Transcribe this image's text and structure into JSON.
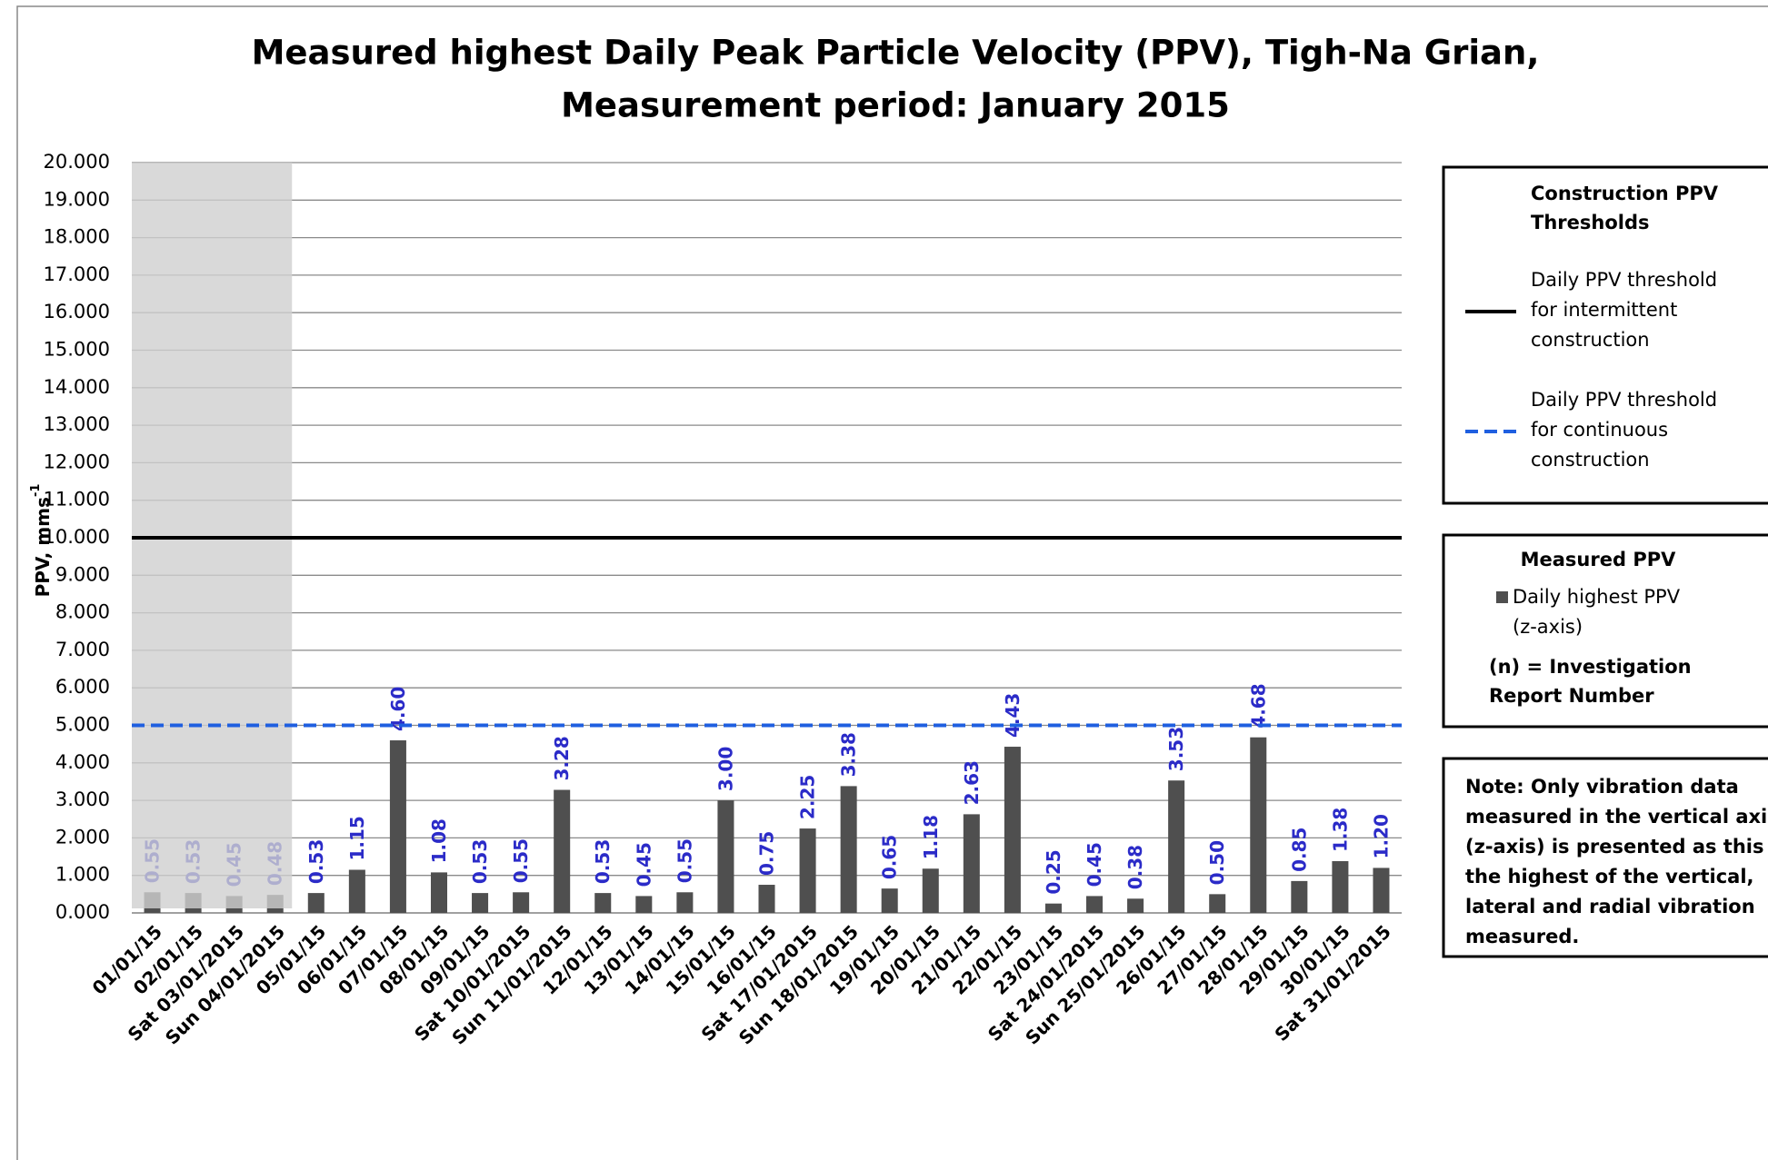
{
  "chart_data": {
    "type": "bar",
    "title": "Measured highest Daily Peak Particle Velocity (PPV), Tigh-Na Grian,",
    "subtitle": "Measurement period: January 2015",
    "y_label": "PPV, mms",
    "y_label_superscript": "-1",
    "categories": [
      "01/01/15",
      "02/01/15",
      "Sat 03/01/2015",
      "Sun 04/01/2015",
      "05/01/15",
      "06/01/15",
      "07/01/15",
      "08/01/15",
      "09/01/15",
      "Sat 10/01/2015",
      "Sun 11/01/2015",
      "12/01/15",
      "13/01/15",
      "14/01/15",
      "15/01/15",
      "16/01/15",
      "Sat 17/01/2015",
      "Sun 18/01/2015",
      "19/01/15",
      "20/01/15",
      "21/01/15",
      "22/01/15",
      "23/01/15",
      "Sat 24/01/2015",
      "Sun 25/01/2015",
      "26/01/15",
      "27/01/15",
      "28/01/15",
      "29/01/15",
      "30/01/15",
      "Sat 31/01/2015"
    ],
    "series": [
      {
        "name": "Daily highest PPV (z-axis)",
        "color": "#4f4f4f",
        "values": [
          0.55,
          0.53,
          0.45,
          0.48,
          0.53,
          1.15,
          4.6,
          1.08,
          0.53,
          0.55,
          3.28,
          0.53,
          0.45,
          0.55,
          3.0,
          0.75,
          2.25,
          3.38,
          0.65,
          1.18,
          2.63,
          4.43,
          0.25,
          0.45,
          0.38,
          3.53,
          0.5,
          4.68,
          0.85,
          1.38,
          1.2
        ],
        "value_labels": [
          "0.55",
          "0.53",
          "0.45",
          "0.48",
          "0.53",
          "1.15",
          "4.60",
          "1.08",
          "0.53",
          "0.55",
          "3.28",
          "0.53",
          "0.45",
          "0.55",
          "3.00",
          "0.75",
          "2.25",
          "3.38",
          "0.65",
          "1.18",
          "2.63",
          "4.43",
          "0.25",
          "0.45",
          "0.38",
          "3.53",
          "0.50",
          "4.68",
          "0.85",
          "1.38",
          "1.20"
        ],
        "value_label_color": "#2b2bc8"
      }
    ],
    "thresholds": [
      {
        "name": "Daily PPV threshold for intermittent construction",
        "value": 10,
        "color": "#000000",
        "dashed": false
      },
      {
        "name": "Daily PPV threshold for continuous construction",
        "value": 5,
        "color": "#1f5fe0",
        "dashed": true
      }
    ],
    "threshold_legend_title": "Construction PPV Thresholds",
    "series_legend_title": "Measured PPV",
    "legend_note": "(n) = Investigation Report Number",
    "note_label": "Note:",
    "note_text": "Only vibration data measured in the vertical axis (z-axis) is presented as this is the highest of the vertical, lateral and radial vibration measured.",
    "ylim": [
      0,
      20
    ],
    "yticks": [
      {
        "value": 0,
        "label": "0.000"
      },
      {
        "value": 1,
        "label": "1.000"
      },
      {
        "value": 2,
        "label": "2.000"
      },
      {
        "value": 3,
        "label": "3.000"
      },
      {
        "value": 4,
        "label": "4.000"
      },
      {
        "value": 5,
        "label": "5.000"
      },
      {
        "value": 6,
        "label": "6.000"
      },
      {
        "value": 7,
        "label": "7.000"
      },
      {
        "value": 8,
        "label": "8.000"
      },
      {
        "value": 9,
        "label": "9.000"
      },
      {
        "value": 10,
        "label": "10.000"
      },
      {
        "value": 11,
        "label": "11.000"
      },
      {
        "value": 12,
        "label": "12.000"
      },
      {
        "value": 13,
        "label": "13.000"
      },
      {
        "value": 14,
        "label": "14.000"
      },
      {
        "value": 15,
        "label": "15.000"
      },
      {
        "value": 16,
        "label": "16.000"
      },
      {
        "value": 17,
        "label": "17.000"
      },
      {
        "value": 18,
        "label": "18.000"
      },
      {
        "value": 19,
        "label": "19.000"
      },
      {
        "value": 20,
        "label": "20.000"
      }
    ],
    "grid": true,
    "legend_position": "right"
  }
}
